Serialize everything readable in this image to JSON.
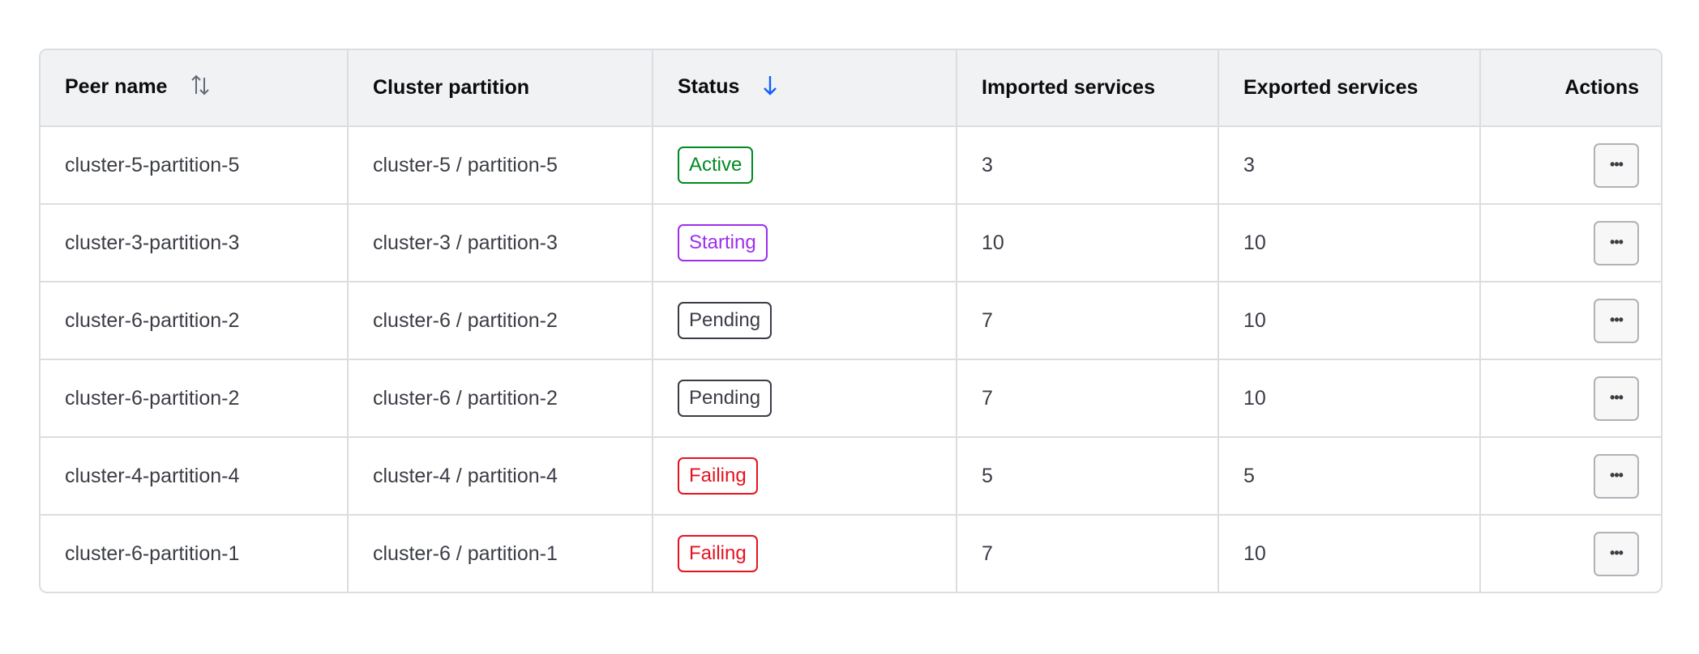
{
  "headers": {
    "peer_name": "Peer name",
    "cluster_partition": "Cluster partition",
    "status": "Status",
    "imported": "Imported services",
    "exported": "Exported services",
    "actions": "Actions"
  },
  "sort": {
    "peer_name": "sort-both-icon",
    "status": "sort-descending-icon"
  },
  "colors": {
    "active": "#008a22",
    "starting": "#9e2fec",
    "pending": "#3b3d45",
    "failing": "#e5131f",
    "sort_active": "#1060ff"
  },
  "rows": [
    {
      "peer": "cluster-5-partition-5",
      "partition": "cluster-5 / partition-5",
      "status": "Active",
      "kind": "active",
      "imported": "3",
      "exported": "3"
    },
    {
      "peer": "cluster-3-partition-3",
      "partition": "cluster-3 / partition-3",
      "status": "Starting",
      "kind": "starting",
      "imported": "10",
      "exported": "10"
    },
    {
      "peer": "cluster-6-partition-2",
      "partition": "cluster-6 / partition-2",
      "status": "Pending",
      "kind": "pending",
      "imported": "7",
      "exported": "10"
    },
    {
      "peer": "cluster-6-partition-2",
      "partition": "cluster-6 / partition-2",
      "status": "Pending",
      "kind": "pending",
      "imported": "7",
      "exported": "10"
    },
    {
      "peer": "cluster-4-partition-4",
      "partition": "cluster-4 / partition-4",
      "status": "Failing",
      "kind": "failing",
      "imported": "5",
      "exported": "5"
    },
    {
      "peer": "cluster-6-partition-1",
      "partition": "cluster-6 / partition-1",
      "status": "Failing",
      "kind": "failing",
      "imported": "7",
      "exported": "10"
    }
  ],
  "actions_icon": "more-horizontal-icon"
}
